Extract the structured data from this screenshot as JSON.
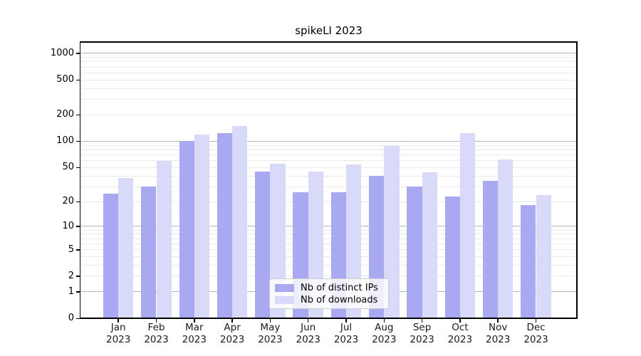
{
  "chart_data": {
    "type": "bar",
    "title": "spikeLI 2023",
    "year": "2023",
    "categories": [
      "Jan",
      "Feb",
      "Mar",
      "Apr",
      "May",
      "Jun",
      "Jul",
      "Aug",
      "Sep",
      "Oct",
      "Nov",
      "Dec"
    ],
    "series": [
      {
        "name": "Nb of distinct IPs",
        "color": "#a9a9f2",
        "values": [
          25,
          30,
          100,
          125,
          45,
          26,
          26,
          40,
          30,
          23,
          35,
          18
        ]
      },
      {
        "name": "Nb of downloads",
        "color": "#d9d9f9",
        "values": [
          38,
          60,
          120,
          150,
          55,
          45,
          54,
          88,
          44,
          125,
          62,
          24
        ]
      }
    ],
    "yscale": "log1p",
    "ytick_labels": [
      0,
      1,
      2,
      5,
      10,
      20,
      50,
      100,
      200,
      500,
      1000
    ],
    "major_grid_values": [
      1,
      10,
      100,
      1000
    ],
    "minor_grid_values": [
      2,
      3,
      4,
      5,
      6,
      7,
      8,
      9,
      20,
      30,
      40,
      50,
      60,
      70,
      80,
      90,
      200,
      300,
      400,
      500,
      600,
      700,
      800,
      900
    ],
    "grid": true,
    "legend_position": "lower center",
    "colors": {
      "major_gridline": "#b5b5b5",
      "minor_gridline": "#e9e9e9",
      "axis": "#000000",
      "background": "#ffffff"
    }
  }
}
